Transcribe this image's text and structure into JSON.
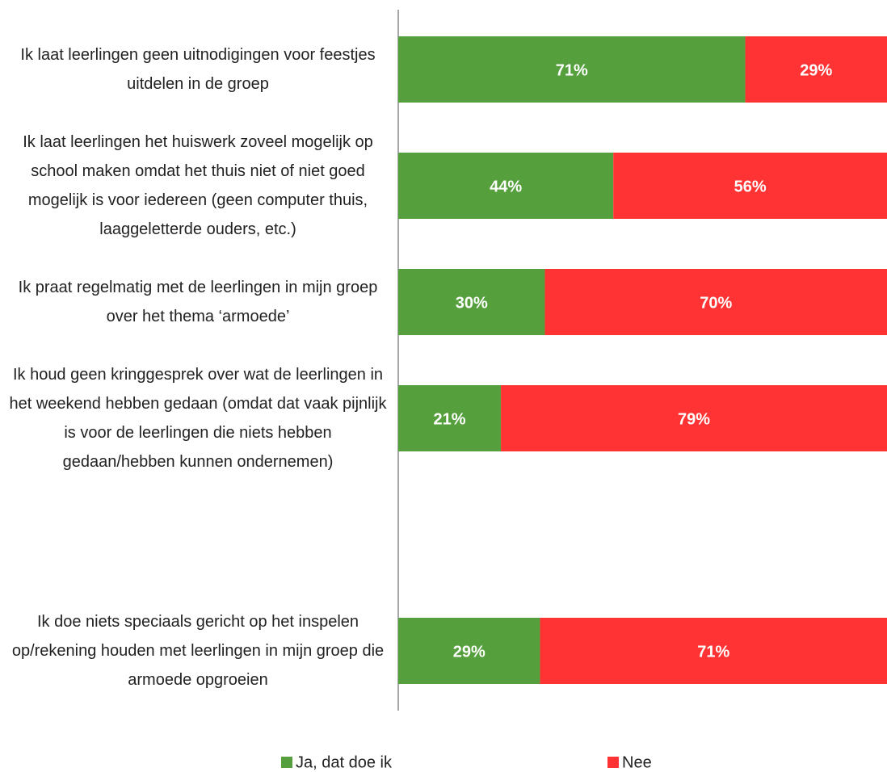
{
  "chart_data": {
    "type": "stacked-bar-horizontal",
    "categories": [
      "Ik laat leerlingen geen uitnodigingen voor feestjes uitdelen in de groep",
      "Ik laat leerlingen het huiswerk zoveel mogelijk op school maken omdat het thuis niet of niet goed mogelijk is voor iedereen (geen computer thuis, laaggeletterde ouders, etc.)",
      "Ik praat regelmatig met de leerlingen in mijn groep over het thema ‘armoede’",
      "Ik houd geen kringgesprek over wat de leerlingen in het weekend hebben gedaan (omdat dat vaak pijnlijk is voor de leerlingen die niets hebben gedaan/hebben kunnen ondernemen)",
      null,
      "Ik doe niets speciaals gericht op het inspelen op/rekening houden met leerlingen in mijn groep die armoede opgroeien"
    ],
    "series": [
      {
        "name": "Ja, dat doe ik",
        "color": "#55a03c",
        "values": [
          71,
          44,
          30,
          21,
          null,
          29
        ],
        "value_labels": [
          "71%",
          "44%",
          "30%",
          "21%",
          null,
          "29%"
        ]
      },
      {
        "name": "Nee",
        "color": "#ff3333",
        "values": [
          29,
          56,
          70,
          79,
          null,
          71
        ],
        "value_labels": [
          "29%",
          "56%",
          "70%",
          "79%",
          null,
          "71%"
        ]
      }
    ],
    "xlim": [
      0,
      100
    ],
    "legend": "bottom"
  }
}
